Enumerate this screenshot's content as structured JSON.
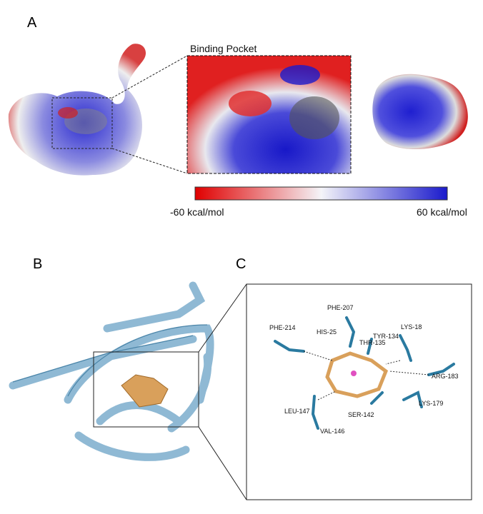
{
  "panel_a": {
    "label": "A",
    "inset_title": "Binding Pocket",
    "colorbar": {
      "min_label": "-60 kcal/mol",
      "max_label": "60 kcal/mol"
    }
  },
  "panel_b": {
    "label": "B"
  },
  "panel_c": {
    "label": "C",
    "residues": [
      "PHE-207",
      "PHE-214",
      "HIS-25",
      "TYR-134",
      "LYS-18",
      "THR-135",
      "ARG-183",
      "LEU-147",
      "SER-142",
      "LYS-179",
      "VAL-146"
    ]
  }
}
